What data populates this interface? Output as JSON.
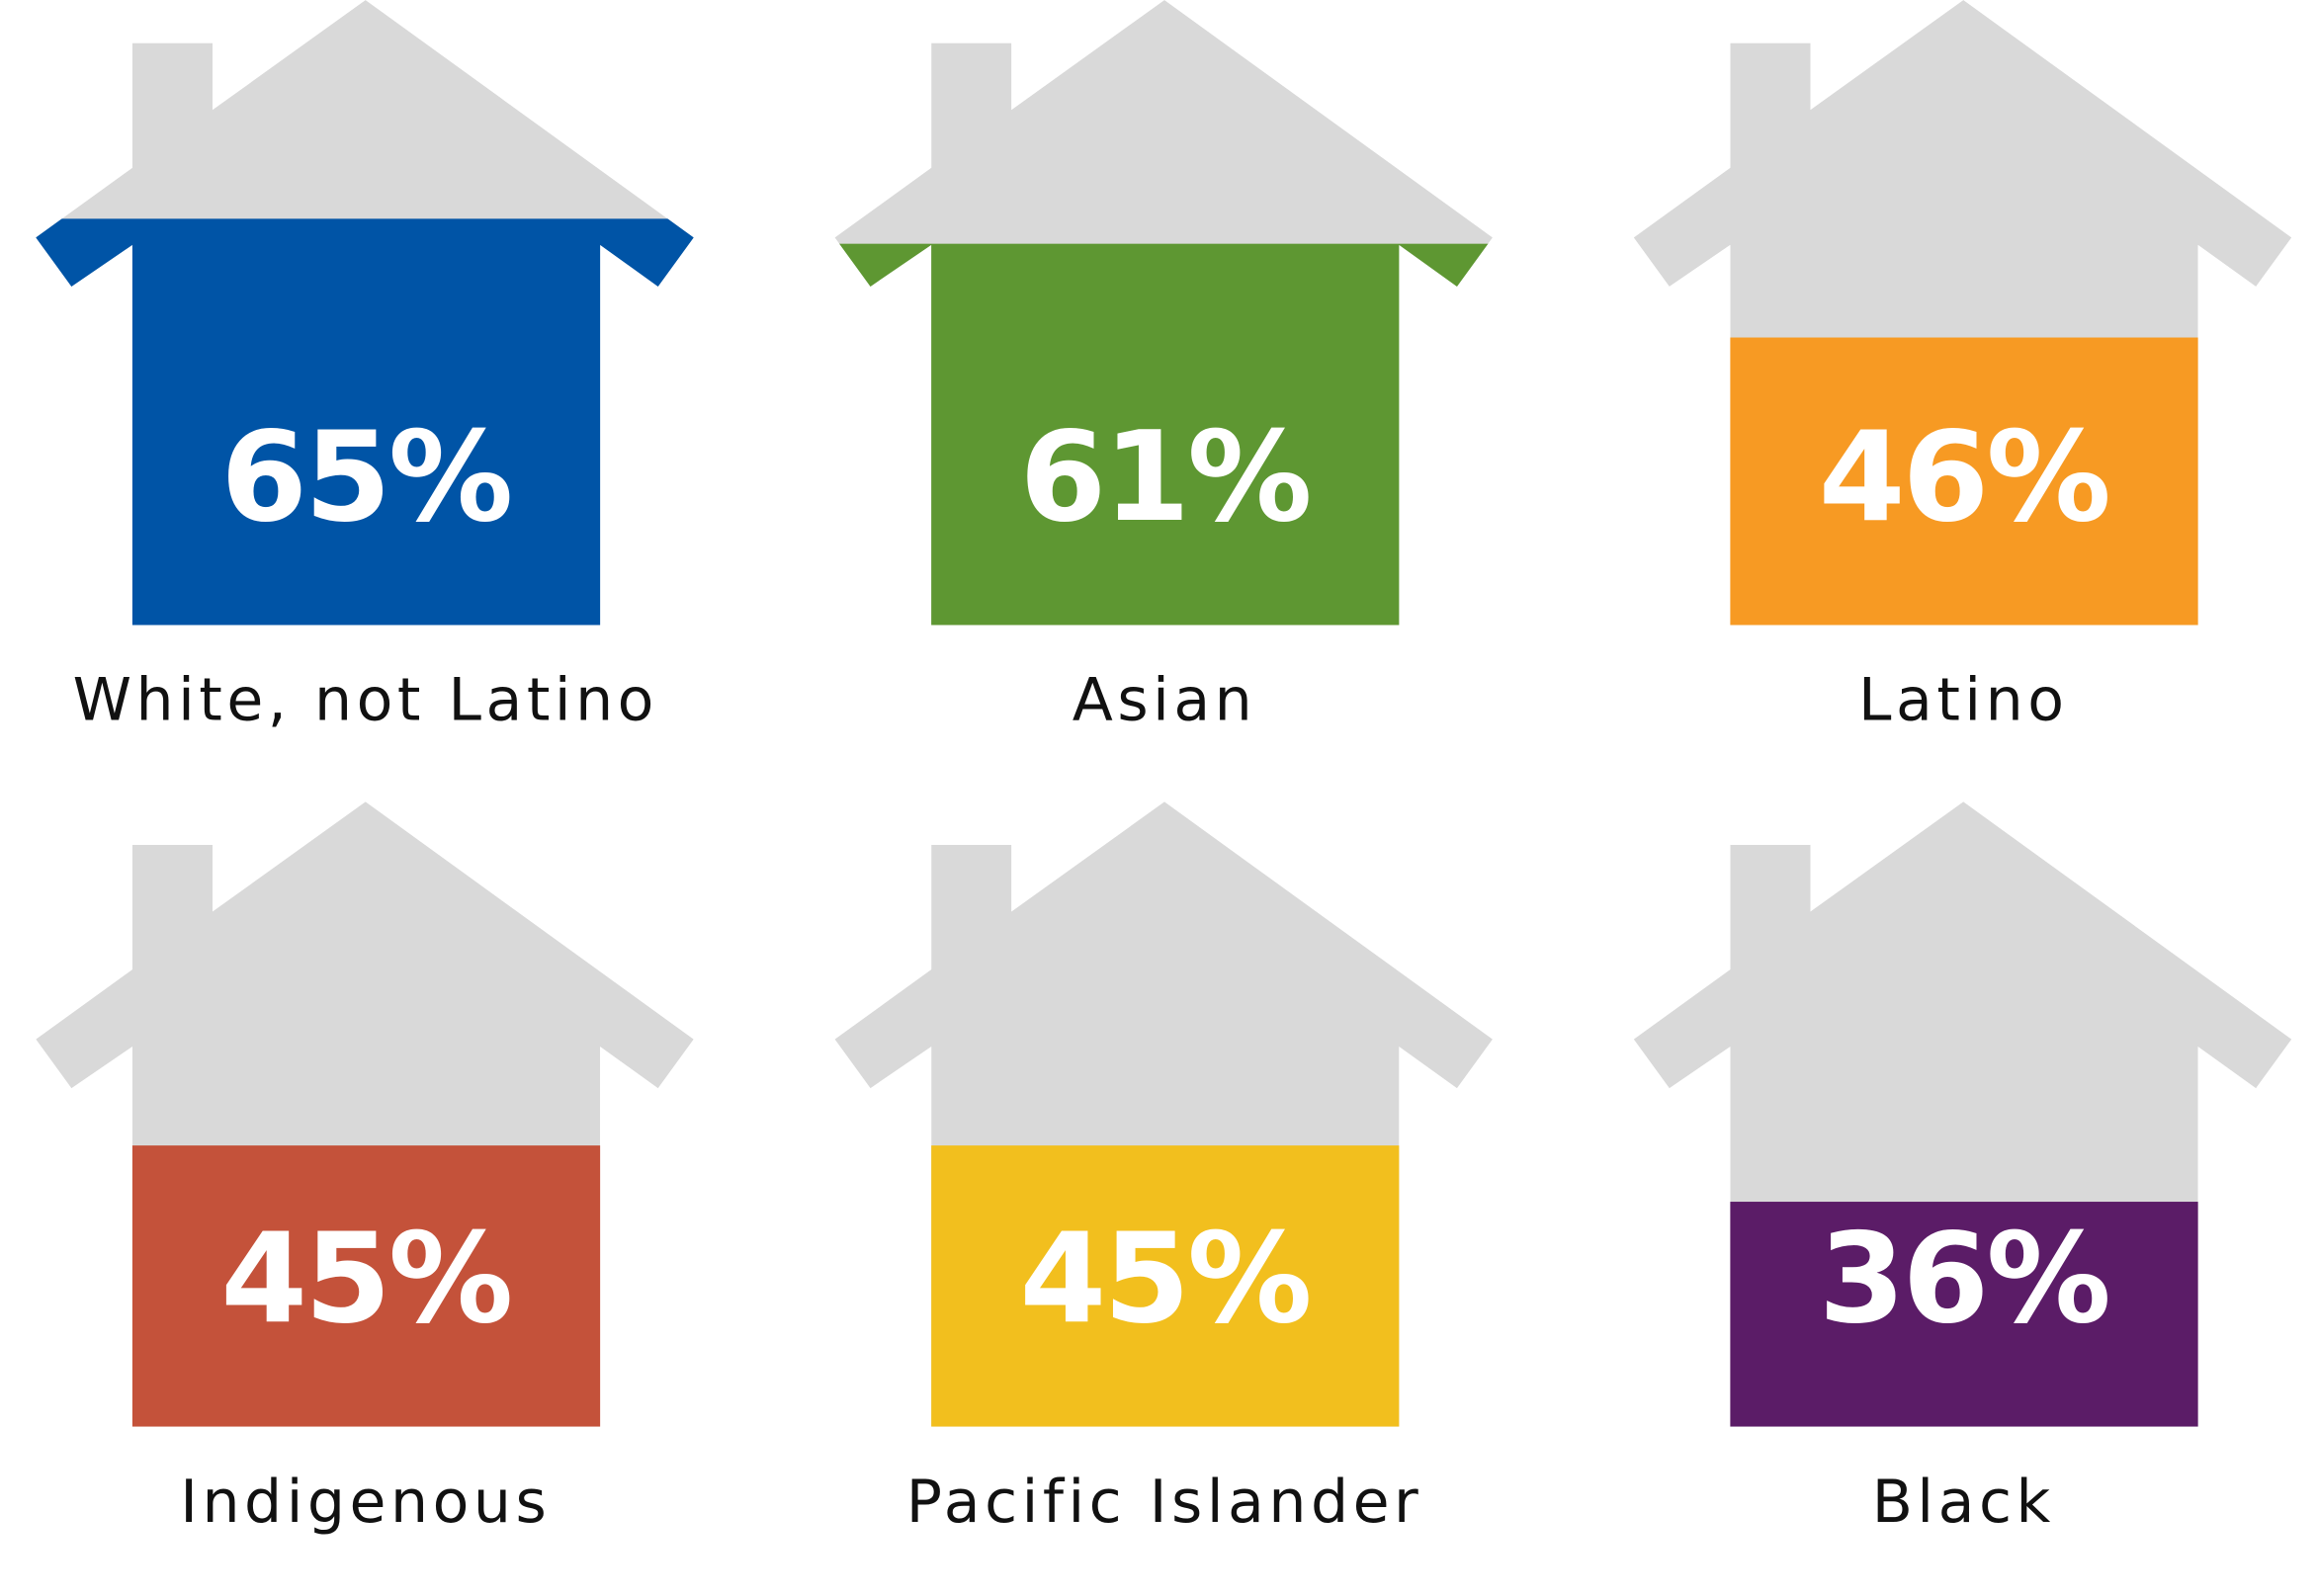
{
  "chart_data": {
    "type": "pictograph",
    "categories": [
      "White, not Latino",
      "Asian",
      "Latino",
      "Indigenous",
      "Pacific Islander",
      "Black"
    ],
    "values": [
      65,
      61,
      46,
      45,
      45,
      36
    ],
    "value_labels": [
      "65%",
      "61%",
      "46%",
      "45%",
      "45%",
      "36%"
    ],
    "colors": [
      "#0054a6",
      "#5e9732",
      "#f79a23",
      "#c4523a",
      "#f2bf1e",
      "#5b1c67"
    ],
    "ylim": [
      0,
      100
    ]
  }
}
